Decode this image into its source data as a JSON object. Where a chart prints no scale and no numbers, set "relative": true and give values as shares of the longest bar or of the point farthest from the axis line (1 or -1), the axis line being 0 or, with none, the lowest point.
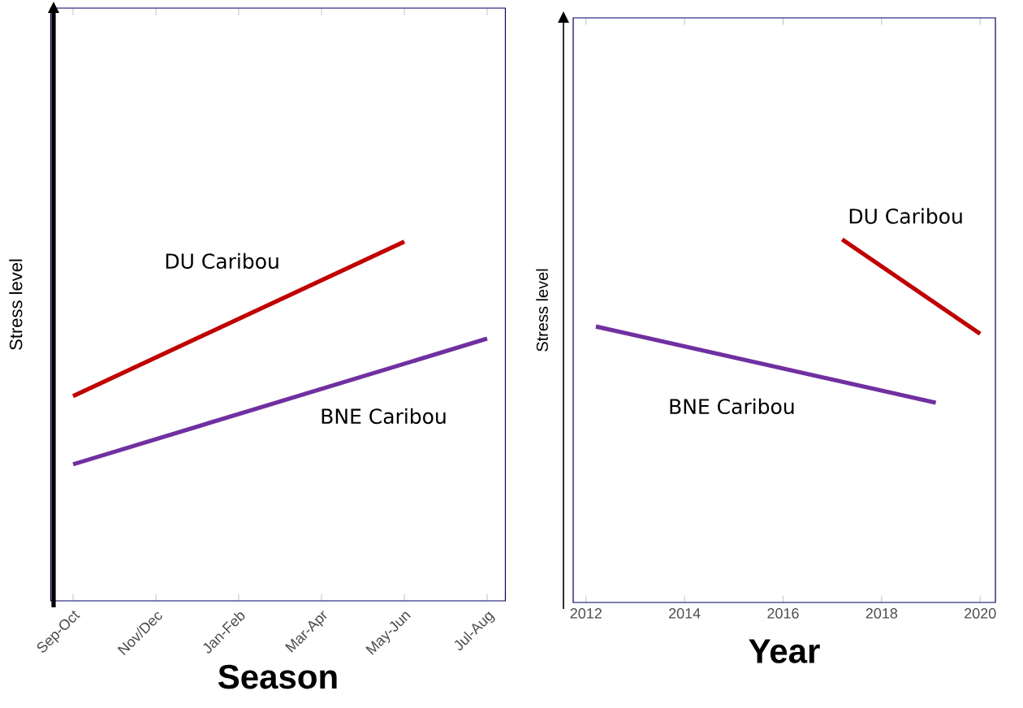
{
  "chart_data": [
    {
      "type": "line",
      "relative": true,
      "xlabel": "Season",
      "ylabel": "Stress level",
      "categories": [
        "Sep-Oct",
        "Nov/Dec",
        "Jan-Feb",
        "Mar-Apr",
        "May-Jun",
        "Jul-Aug"
      ],
      "tick_labels": "x",
      "series": [
        {
          "name": "DU Caribou",
          "color": "#c00000",
          "values": [
            0.57,
            null,
            null,
            null,
            1,
            null
          ]
        },
        {
          "name": "BNE Caribou",
          "color": "#7030a0",
          "values": [
            0.38,
            null,
            null,
            null,
            null,
            0.73
          ]
        }
      ]
    },
    {
      "type": "line",
      "relative": true,
      "xlabel": "Year",
      "ylabel": "Stress level",
      "xlim": [
        2011.74,
        2020.31
      ],
      "xticks": [
        2012,
        2014,
        2016,
        2018,
        2020
      ],
      "tick_labels": "x",
      "series": [
        {
          "name": "DU Caribou",
          "color": "#c00000",
          "x": [
            2017.2,
            2020
          ],
          "values": [
            1,
            0.74
          ]
        },
        {
          "name": "BNE Caribou",
          "color": "#7030a0",
          "x": [
            2012.2,
            2019.1
          ],
          "values": [
            0.76,
            0.55
          ]
        }
      ]
    }
  ]
}
